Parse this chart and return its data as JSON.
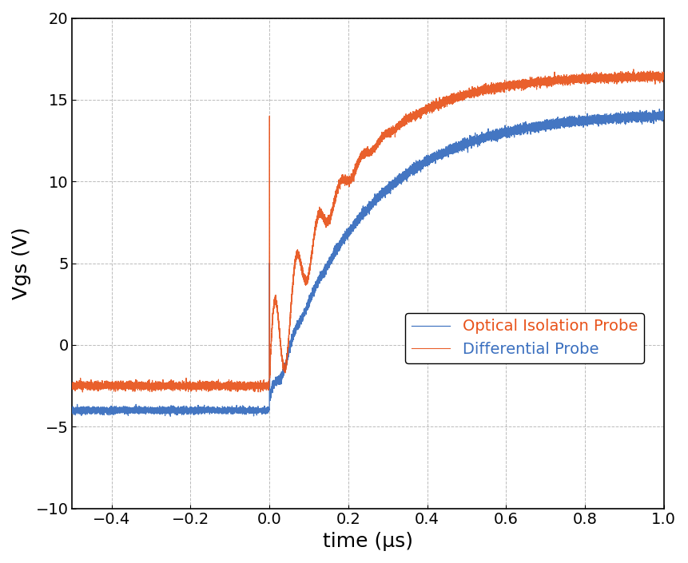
{
  "title": "",
  "xlabel": "time (μs)",
  "ylabel": "Vgs (V)",
  "xlim": [
    -0.5,
    1.0
  ],
  "ylim": [
    -10,
    20
  ],
  "xticks": [
    -0.4,
    -0.2,
    0.0,
    0.2,
    0.4,
    0.6,
    0.8,
    1.0
  ],
  "yticks": [
    -10,
    -5,
    0,
    5,
    10,
    15,
    20
  ],
  "diff_probe_color": "#E8521A",
  "opt_probe_color": "#3A6FBF",
  "legend_labels": [
    "Differential Probe",
    "Optical Isolation Probe"
  ],
  "background_color": "#FFFFFF",
  "grid_color": "#BBBBBB",
  "xlabel_fontsize": 18,
  "ylabel_fontsize": 18,
  "tick_fontsize": 14,
  "legend_fontsize": 14,
  "diff_pre_level": -2.5,
  "opt_pre_level": -4.0,
  "diff_settle": 16.5,
  "opt_settle": 14.2,
  "diff_tau": 0.18,
  "opt_tau": 0.22,
  "ring_freq": 18.0,
  "diff_ring_amp": 4.5,
  "diff_ring_decay": 0.08,
  "opt_ring_amp": 1.0,
  "opt_ring_decay": 0.04
}
